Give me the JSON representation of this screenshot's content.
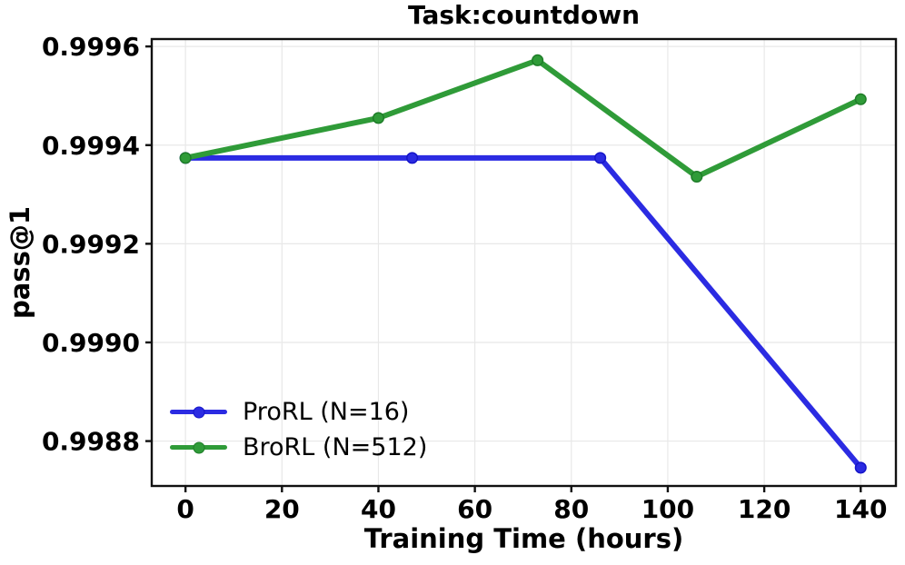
{
  "chart_data": {
    "type": "line",
    "title": "Task:countdown",
    "xlabel": "Training Time (hours)",
    "ylabel": "pass@1",
    "xlim": [
      -7,
      147.3
    ],
    "ylim": [
      0.998709,
      0.999615
    ],
    "x_ticks": [
      0,
      20,
      40,
      60,
      80,
      100,
      120,
      140
    ],
    "y_ticks": [
      "0.9996",
      "0.9994",
      "0.9992",
      "0.9990",
      "0.9988"
    ],
    "grid": true,
    "grid_color": "#e8e8e8",
    "axis_color": "#111111",
    "legend_position": "lower-left",
    "series": [
      {
        "name": "ProRL (N=16)",
        "color": "#2b2be2",
        "marker_edge": "#1515c8",
        "x": [
          0,
          47,
          86,
          140
        ],
        "y": [
          0.999374,
          0.999374,
          0.999374,
          0.998746
        ]
      },
      {
        "name": "BroRL (N=512)",
        "color": "#2f9b38",
        "marker_edge": "#1e7d28",
        "x": [
          0,
          40,
          73,
          106,
          140
        ],
        "y": [
          0.999374,
          0.999455,
          0.999572,
          0.999336,
          0.999493
        ]
      }
    ]
  }
}
